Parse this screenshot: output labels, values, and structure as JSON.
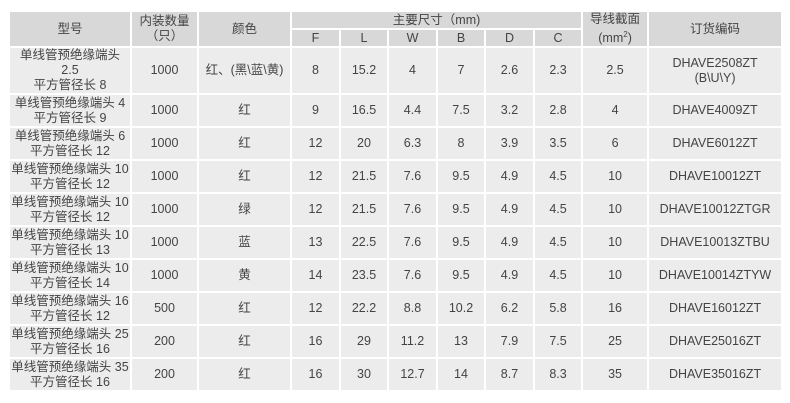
{
  "headers": {
    "model": "型号",
    "qty_line1": "内装数量",
    "qty_line2": "（只）",
    "color": "颜色",
    "dims": "主要尺寸（mm)",
    "F": "F",
    "L": "L",
    "W": "W",
    "B": "B",
    "D": "D",
    "C": "C",
    "section_line1": "导线截面",
    "section_unit_pre": "(mm",
    "section_sup": "2",
    "section_unit_post": ")",
    "code": "订货编码"
  },
  "rows": [
    {
      "model1": "单线管预绝缘端头 2.5",
      "model2": "平方管径长 8",
      "qty": "1000",
      "color": "红、(黑\\蓝\\黄)",
      "F": "8",
      "L": "15.2",
      "W": "4",
      "B": "7",
      "D": "2.6",
      "C": "2.3",
      "section": "2.5",
      "code1": "DHAVE2508ZT",
      "code2": "(B\\U\\Y)"
    },
    {
      "model1": "单线管预绝缘端头 4",
      "model2": "平方管径长 9",
      "qty": "1000",
      "color": "红",
      "F": "9",
      "L": "16.5",
      "W": "4.4",
      "B": "7.5",
      "D": "3.2",
      "C": "2.8",
      "section": "4",
      "code1": "DHAVE4009ZT",
      "code2": ""
    },
    {
      "model1": "单线管预绝缘端头 6",
      "model2": "平方管径长 12",
      "qty": "1000",
      "color": "红",
      "F": "12",
      "L": "20",
      "W": "6.3",
      "B": "8",
      "D": "3.9",
      "C": "3.5",
      "section": "6",
      "code1": "DHAVE6012ZT",
      "code2": ""
    },
    {
      "model1": "单线管预绝缘端头 10",
      "model2": "平方管径长 12",
      "qty": "1000",
      "color": "红",
      "F": "12",
      "L": "21.5",
      "W": "7.6",
      "B": "9.5",
      "D": "4.9",
      "C": "4.5",
      "section": "10",
      "code1": "DHAVE10012ZT",
      "code2": ""
    },
    {
      "model1": "单线管预绝缘端头 10",
      "model2": "平方管径长 12",
      "qty": "1000",
      "color": "绿",
      "F": "12",
      "L": "21.5",
      "W": "7.6",
      "B": "9.5",
      "D": "4.9",
      "C": "4.5",
      "section": "10",
      "code1": "DHAVE10012ZTGR",
      "code2": ""
    },
    {
      "model1": "单线管预绝缘端头 10",
      "model2": "平方管径长 13",
      "qty": "1000",
      "color": "蓝",
      "F": "13",
      "L": "22.5",
      "W": "7.6",
      "B": "9.5",
      "D": "4.9",
      "C": "4.5",
      "section": "10",
      "code1": "DHAVE10013ZTBU",
      "code2": ""
    },
    {
      "model1": "单线管预绝缘端头 10",
      "model2": "平方管径长 14",
      "qty": "1000",
      "color": "黄",
      "F": "14",
      "L": "23.5",
      "W": "7.6",
      "B": "9.5",
      "D": "4.9",
      "C": "4.5",
      "section": "10",
      "code1": "DHAVE10014ZTYW",
      "code2": ""
    },
    {
      "model1": "单线管预绝缘端头 16",
      "model2": "平方管径长 12",
      "qty": "500",
      "color": "红",
      "F": "12",
      "L": "22.2",
      "W": "8.8",
      "B": "10.2",
      "D": "6.2",
      "C": "5.8",
      "section": "16",
      "code1": "DHAVE16012ZT",
      "code2": ""
    },
    {
      "model1": "单线管预绝缘端头 25",
      "model2": "平方管径长 16",
      "qty": "200",
      "color": "红",
      "F": "16",
      "L": "29",
      "W": "11.2",
      "B": "13",
      "D": "7.9",
      "C": "7.5",
      "section": "25",
      "code1": "DHAVE25016ZT",
      "code2": ""
    },
    {
      "model1": "单线管预绝缘端头 35",
      "model2": "平方管径长 16",
      "qty": "200",
      "color": "红",
      "F": "16",
      "L": "30",
      "W": "12.7",
      "B": "14",
      "D": "8.7",
      "C": "8.3",
      "section": "35",
      "code1": "DHAVE35016ZT",
      "code2": ""
    }
  ]
}
